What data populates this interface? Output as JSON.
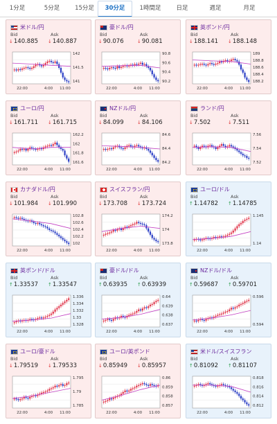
{
  "tabs": [
    "1分足",
    "5分足",
    "15分足",
    "30分足",
    "1時間足",
    "日足",
    "週足",
    "月足"
  ],
  "active_tab": 3,
  "labels": {
    "bid": "Bid",
    "ask": "Ask"
  },
  "cards": [
    {
      "pair": "米ドル/円",
      "flag": "us",
      "dir": "down",
      "bid": "140.885",
      "ask": "140.887",
      "yticks": [
        "142",
        "141.5",
        "141"
      ],
      "times": [
        "22:00",
        "4:00",
        "11:00"
      ],
      "trend": [
        0.45,
        0.42,
        0.46,
        0.44,
        0.48,
        0.5,
        0.52,
        0.5,
        0.47,
        0.5,
        0.55,
        0.6,
        0.62,
        0.58,
        0.55,
        0.6,
        0.65,
        0.7,
        0.72,
        0.68,
        0.66,
        0.7,
        0.62,
        0.5,
        0.35,
        0.2,
        0.12,
        0.08,
        0.05
      ],
      "ma": [
        0.65,
        0.62,
        0.58,
        0.55
      ]
    },
    {
      "pair": "豪ドル/円",
      "flag": "au",
      "dir": "down",
      "bid": "90.076",
      "ask": "90.081",
      "yticks": [
        "90.8",
        "90.6",
        "90.4",
        "90.2"
      ],
      "times": [
        "22:00",
        "4:00",
        "11:00"
      ],
      "trend": [
        0.5,
        0.48,
        0.46,
        0.5,
        0.52,
        0.5,
        0.48,
        0.55,
        0.5,
        0.53,
        0.56,
        0.58,
        0.55,
        0.57,
        0.6,
        0.58,
        0.62,
        0.6,
        0.63,
        0.66,
        0.6,
        0.62,
        0.55,
        0.5,
        0.42,
        0.3,
        0.2,
        0.12,
        0.08
      ],
      "ma": [
        0.55,
        0.57,
        0.58,
        0.5
      ]
    },
    {
      "pair": "英ポンド/円",
      "flag": "gb",
      "dir": "down",
      "bid": "188.141",
      "ask": "188.148",
      "yticks": [
        "189",
        "188.8",
        "188.6",
        "188.4",
        "188.2"
      ],
      "times": [
        "22:00",
        "4:00",
        "11:00"
      ],
      "trend": [
        0.6,
        0.58,
        0.6,
        0.62,
        0.63,
        0.6,
        0.58,
        0.62,
        0.65,
        0.62,
        0.6,
        0.63,
        0.65,
        0.7,
        0.68,
        0.72,
        0.74,
        0.7,
        0.72,
        0.76,
        0.78,
        0.74,
        0.7,
        0.6,
        0.45,
        0.35,
        0.2,
        0.12,
        0.06
      ],
      "ma": [
        0.75,
        0.72,
        0.7,
        0.62
      ]
    },
    {
      "pair": "ユーロ/円",
      "flag": "eu",
      "dir": "down",
      "bid": "161.711",
      "ask": "161.715",
      "yticks": [
        "162.2",
        "162",
        "161.8",
        "161.6"
      ],
      "times": [
        "22:00",
        "4:00",
        "11:00"
      ],
      "trend": [
        0.4,
        0.42,
        0.45,
        0.5,
        0.48,
        0.5,
        0.45,
        0.5,
        0.55,
        0.52,
        0.5,
        0.48,
        0.5,
        0.52,
        0.5,
        0.55,
        0.58,
        0.6,
        0.62,
        0.6,
        0.65,
        0.7,
        0.62,
        0.55,
        0.5,
        0.45,
        0.3,
        0.2,
        0.1
      ],
      "ma": [
        0.55,
        0.5,
        0.55,
        0.55
      ]
    },
    {
      "pair": "NZドル/円",
      "flag": "nz",
      "dir": "down",
      "bid": "84.099",
      "ask": "84.106",
      "yticks": [
        "84.6",
        "84.4",
        "84.2"
      ],
      "times": [
        "22:00",
        "4:00",
        "11:00"
      ],
      "trend": [
        0.5,
        0.48,
        0.5,
        0.52,
        0.5,
        0.55,
        0.58,
        0.6,
        0.55,
        0.52,
        0.5,
        0.55,
        0.6,
        0.62,
        0.58,
        0.55,
        0.6,
        0.62,
        0.58,
        0.55,
        0.52,
        0.55,
        0.5,
        0.45,
        0.38,
        0.3,
        0.22,
        0.15,
        0.1
      ],
      "ma": [
        0.6,
        0.58,
        0.55,
        0.5
      ]
    },
    {
      "pair": "ランド/円",
      "flag": "za",
      "dir": "down",
      "bid": "7.502",
      "ask": "7.511",
      "yticks": [
        "7.56",
        "7.54",
        "7.52"
      ],
      "times": [
        "22:00",
        "4:00",
        "11:00"
      ],
      "trend": [
        0.6,
        0.55,
        0.5,
        0.55,
        0.6,
        0.58,
        0.55,
        0.6,
        0.62,
        0.58,
        0.55,
        0.5,
        0.55,
        0.6,
        0.65,
        0.6,
        0.55,
        0.58,
        0.62,
        0.58,
        0.55,
        0.5,
        0.45,
        0.4,
        0.35,
        0.3,
        0.28,
        0.22,
        0.2
      ],
      "ma": [
        0.55,
        0.57,
        0.55,
        0.42
      ]
    },
    {
      "pair": "カナダドル/円",
      "flag": "ca",
      "dir": "down",
      "bid": "101.984",
      "ask": "101.990",
      "yticks": [
        "102.8",
        "102.6",
        "102.4",
        "102.2",
        "102"
      ],
      "times": [
        "22:00",
        "4:00",
        "11:00"
      ],
      "trend": [
        0.9,
        0.88,
        0.86,
        0.88,
        0.85,
        0.82,
        0.8,
        0.78,
        0.8,
        0.76,
        0.72,
        0.7,
        0.72,
        0.68,
        0.65,
        0.62,
        0.6,
        0.55,
        0.5,
        0.48,
        0.45,
        0.4,
        0.35,
        0.3,
        0.25,
        0.2,
        0.15,
        0.1,
        0.06
      ],
      "ma": [
        0.85,
        0.78,
        0.7,
        0.55
      ]
    },
    {
      "pair": "スイスフラン/円",
      "flag": "ch",
      "dir": "down",
      "bid": "173.708",
      "ask": "173.724",
      "yticks": [
        "174.2",
        "174",
        "173.8"
      ],
      "times": [
        "22:00",
        "4:00",
        "11:00"
      ],
      "trend": [
        0.35,
        0.38,
        0.4,
        0.42,
        0.45,
        0.5,
        0.48,
        0.52,
        0.55,
        0.5,
        0.55,
        0.6,
        0.58,
        0.62,
        0.65,
        0.68,
        0.7,
        0.75,
        0.72,
        0.7,
        0.68,
        0.65,
        0.55,
        0.45,
        0.35,
        0.25,
        0.2,
        0.15,
        0.12
      ],
      "ma": [
        0.45,
        0.55,
        0.62,
        0.55
      ]
    },
    {
      "pair": "ユーロ/ドル",
      "flag": "eu",
      "dir": "up",
      "bid": "1.14782",
      "ask": "1.14785",
      "yticks": [
        "1.145",
        "1.14"
      ],
      "times": [
        "22:00",
        "4:00",
        "11:00"
      ],
      "trend": [
        0.2,
        0.22,
        0.2,
        0.18,
        0.2,
        0.22,
        0.25,
        0.24,
        0.22,
        0.25,
        0.28,
        0.26,
        0.28,
        0.3,
        0.28,
        0.3,
        0.32,
        0.35,
        0.38,
        0.42,
        0.48,
        0.55,
        0.62,
        0.68,
        0.72,
        0.78,
        0.82,
        0.85,
        0.88
      ],
      "ma": [
        0.2,
        0.24,
        0.3,
        0.45
      ]
    },
    {
      "pair": "英ポンド/ドル",
      "flag": "gb",
      "dir": "up",
      "bid": "1.33537",
      "ask": "1.33547",
      "yticks": [
        "1.336",
        "1.334",
        "1.332",
        "1.33",
        "1.328"
      ],
      "times": [
        "22:00",
        "4:00",
        "11:00"
      ],
      "trend": [
        0.15,
        0.18,
        0.2,
        0.18,
        0.2,
        0.22,
        0.2,
        0.22,
        0.25,
        0.24,
        0.22,
        0.25,
        0.28,
        0.3,
        0.28,
        0.3,
        0.32,
        0.35,
        0.38,
        0.42,
        0.48,
        0.55,
        0.6,
        0.65,
        0.7,
        0.75,
        0.8,
        0.85,
        0.9
      ],
      "ma": [
        0.18,
        0.22,
        0.28,
        0.42
      ]
    },
    {
      "pair": "豪ドル/ドル",
      "flag": "au",
      "dir": "up",
      "bid": "0.63935",
      "ask": "0.63939",
      "yticks": [
        "0.64",
        "0.639",
        "0.638",
        "0.637"
      ],
      "times": [
        "22:00",
        "4:00",
        "11:00"
      ],
      "trend": [
        0.2,
        0.22,
        0.25,
        0.22,
        0.2,
        0.25,
        0.3,
        0.28,
        0.3,
        0.35,
        0.32,
        0.3,
        0.35,
        0.38,
        0.4,
        0.42,
        0.45,
        0.5,
        0.55,
        0.52,
        0.58,
        0.62,
        0.6,
        0.65,
        0.7,
        0.72,
        0.78,
        0.82,
        0.85
      ],
      "ma": [
        0.25,
        0.3,
        0.4,
        0.55
      ]
    },
    {
      "pair": "NZドル/ドル",
      "flag": "nz",
      "dir": "up",
      "bid": "0.59687",
      "ask": "0.59701",
      "yticks": [
        "0.596",
        "0.594"
      ],
      "times": [
        "22:00",
        "4:00",
        "11:00"
      ],
      "trend": [
        0.2,
        0.18,
        0.22,
        0.25,
        0.22,
        0.2,
        0.25,
        0.28,
        0.3,
        0.28,
        0.32,
        0.35,
        0.38,
        0.4,
        0.42,
        0.45,
        0.48,
        0.5,
        0.55,
        0.6,
        0.58,
        0.62,
        0.65,
        0.7,
        0.72,
        0.75,
        0.8,
        0.82,
        0.85
      ],
      "ma": [
        0.22,
        0.28,
        0.38,
        0.52
      ]
    },
    {
      "pair": "ユーロ/豪ドル",
      "flag": "eu",
      "dir": "down",
      "bid": "1.79519",
      "ask": "1.79533",
      "yticks": [
        "1.795",
        "1.79",
        "1.785"
      ],
      "times": [
        "22:00",
        "4:00",
        "11:00"
      ],
      "trend": [
        0.3,
        0.28,
        0.25,
        0.28,
        0.3,
        0.35,
        0.32,
        0.3,
        0.35,
        0.38,
        0.4,
        0.38,
        0.42,
        0.45,
        0.48,
        0.5,
        0.52,
        0.55,
        0.6,
        0.62,
        0.65,
        0.7,
        0.68,
        0.72,
        0.75,
        0.7,
        0.72,
        0.78,
        0.8
      ],
      "ma": [
        0.3,
        0.38,
        0.5,
        0.62
      ]
    },
    {
      "pair": "ユーロ/英ポンド",
      "flag": "eu",
      "dir": "down",
      "bid": "0.85949",
      "ask": "0.85957",
      "yticks": [
        "0.86",
        "0.859",
        "0.858",
        "0.857"
      ],
      "times": [
        "22:00",
        "4:00",
        "11:00"
      ],
      "trend": [
        0.2,
        0.22,
        0.25,
        0.3,
        0.28,
        0.32,
        0.35,
        0.38,
        0.4,
        0.45,
        0.5,
        0.55,
        0.52,
        0.55,
        0.6,
        0.62,
        0.65,
        0.7,
        0.72,
        0.75,
        0.78,
        0.75,
        0.72,
        0.7,
        0.75,
        0.72,
        0.7,
        0.68,
        0.72
      ],
      "ma": [
        0.25,
        0.4,
        0.58,
        0.72
      ]
    },
    {
      "pair": "米ドル/スイスフラン",
      "flag": "us",
      "dir": "up",
      "bid": "0.81092",
      "ask": "0.81107",
      "yticks": [
        "0.818",
        "0.816",
        "0.814",
        "0.812"
      ],
      "times": [
        "22:00",
        "4:00",
        "11:00"
      ],
      "trend": [
        0.7,
        0.72,
        0.75,
        0.72,
        0.7,
        0.72,
        0.75,
        0.78,
        0.75,
        0.72,
        0.7,
        0.68,
        0.7,
        0.72,
        0.75,
        0.72,
        0.7,
        0.68,
        0.65,
        0.6,
        0.55,
        0.5,
        0.45,
        0.38,
        0.3,
        0.25,
        0.18,
        0.12,
        0.08
      ],
      "ma": [
        0.72,
        0.72,
        0.68,
        0.5
      ]
    }
  ]
}
